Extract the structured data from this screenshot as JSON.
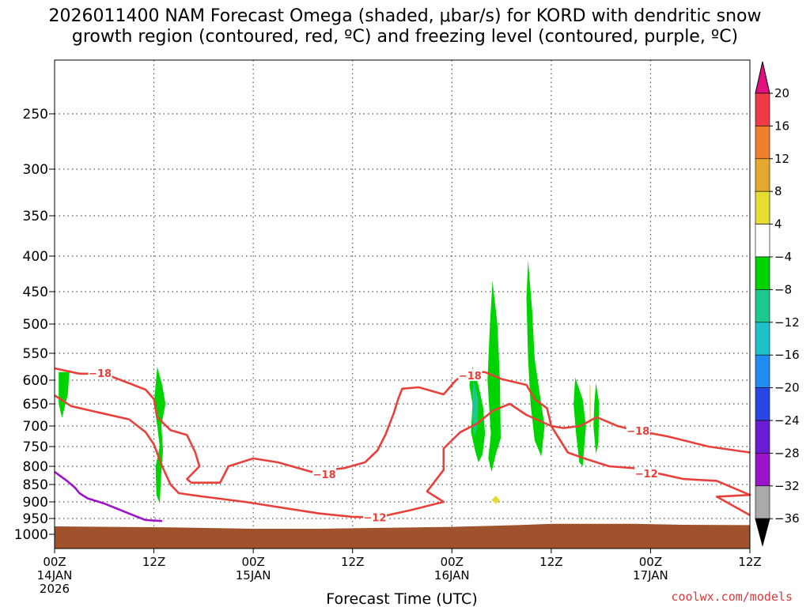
{
  "title": {
    "line1": "2026011400 NAM Forecast Omega (shaded, μbar/s) for KORD with dendritic snow",
    "line2": "growth region (contoured, red, ºC) and freezing level (contoured, purple, ºC)"
  },
  "credit": "coolwx.com/models",
  "chart_data": {
    "type": "heatmap",
    "xlabel": "Forecast Time (UTC)",
    "x_ticks": [
      {
        "h": 0,
        "lines": [
          "00Z",
          "14JAN",
          "2026"
        ]
      },
      {
        "h": 12,
        "lines": [
          "12Z"
        ]
      },
      {
        "h": 24,
        "lines": [
          "00Z",
          "15JAN"
        ]
      },
      {
        "h": 36,
        "lines": [
          "12Z"
        ]
      },
      {
        "h": 48,
        "lines": [
          "00Z",
          "16JAN"
        ]
      },
      {
        "h": 60,
        "lines": [
          "12Z"
        ]
      },
      {
        "h": 72,
        "lines": [
          "00Z",
          "17JAN"
        ]
      },
      {
        "h": 84,
        "lines": [
          "12Z"
        ]
      }
    ],
    "xlim": [
      0,
      84
    ],
    "y_ticks": [
      "250",
      "300",
      "350",
      "400",
      "450",
      "500",
      "550",
      "600",
      "650",
      "700",
      "750",
      "800",
      "850",
      "900",
      "950",
      "1000"
    ],
    "ylim": [
      1030,
      200
    ],
    "yscale": "pressure",
    "colorbar": {
      "labels": [
        "20",
        "16",
        "12",
        "8",
        "4",
        "−4",
        "−8",
        "−12",
        "−16",
        "−20",
        "−24",
        "−28",
        "−32",
        "−36"
      ],
      "colors": [
        "#f03a46",
        "#f07e2a",
        "#e6a72e",
        "#e6dc32",
        "#ffffff",
        "#00d400",
        "#1cc88c",
        "#1ec2c8",
        "#1e8cf0",
        "#2846e6",
        "#6a1cd2",
        "#9c14c8",
        "#aaaaaa"
      ],
      "top_arrow_color": "#e0107c",
      "bottom_arrow_color": "#000000"
    },
    "contours": [
      {
        "label": "−18",
        "color": "#e8413b",
        "points": [
          [
            0,
            578
          ],
          [
            3,
            588
          ],
          [
            6,
            588
          ],
          [
            11,
            620
          ],
          [
            12,
            640
          ],
          [
            12.4,
            680
          ],
          [
            14,
            710
          ],
          [
            16,
            722
          ],
          [
            17,
            765
          ],
          [
            17.5,
            800
          ],
          [
            16,
            835
          ],
          [
            16.5,
            845
          ],
          [
            20,
            845
          ],
          [
            21,
            800
          ],
          [
            24,
            780
          ],
          [
            27,
            790
          ],
          [
            31,
            815
          ],
          [
            35,
            805
          ],
          [
            37.5,
            790
          ],
          [
            39,
            760
          ],
          [
            40,
            720
          ],
          [
            41,
            670
          ],
          [
            41.5,
            640
          ],
          [
            42,
            618
          ],
          [
            44,
            615
          ],
          [
            47,
            630
          ],
          [
            48.5,
            600
          ],
          [
            50,
            585
          ],
          [
            52,
            585
          ],
          [
            54,
            598
          ],
          [
            57,
            610
          ],
          [
            58,
            640
          ],
          [
            59.5,
            660
          ],
          [
            60,
            700
          ],
          [
            61.5,
            705
          ],
          [
            63.5,
            700
          ],
          [
            65.5,
            680
          ],
          [
            68,
            700
          ],
          [
            70,
            710
          ],
          [
            74,
            725
          ],
          [
            79,
            750
          ],
          [
            84,
            765
          ]
        ]
      },
      {
        "label": "−12",
        "color": "#e8413b",
        "points": [
          [
            0,
            632
          ],
          [
            2,
            655
          ],
          [
            5,
            668
          ],
          [
            9,
            685
          ],
          [
            11,
            715
          ],
          [
            12,
            745
          ],
          [
            13,
            800
          ],
          [
            14,
            850
          ],
          [
            15,
            875
          ],
          [
            18,
            885
          ],
          [
            23,
            900
          ],
          [
            32,
            935
          ],
          [
            36,
            945
          ],
          [
            39,
            947
          ],
          [
            43,
            925
          ],
          [
            47,
            900
          ],
          [
            45,
            870
          ],
          [
            47,
            810
          ],
          [
            47,
            755
          ],
          [
            49,
            715
          ],
          [
            51,
            695
          ],
          [
            53,
            665
          ],
          [
            55,
            650
          ],
          [
            57,
            675
          ],
          [
            60,
            700
          ],
          [
            62,
            765
          ],
          [
            64,
            780
          ],
          [
            67,
            800
          ],
          [
            70,
            805
          ],
          [
            73,
            820
          ],
          [
            76,
            835
          ],
          [
            80,
            840
          ],
          [
            84,
            880
          ],
          [
            80,
            885
          ],
          [
            84,
            940
          ]
        ]
      },
      {
        "label": "",
        "color": "#9a14c8",
        "points": [
          [
            0,
            815
          ],
          [
            1.5,
            840
          ],
          [
            2.5,
            860
          ],
          [
            3,
            875
          ],
          [
            4,
            890
          ],
          [
            6,
            905
          ],
          [
            8,
            925
          ],
          [
            10,
            945
          ],
          [
            11,
            955
          ],
          [
            13,
            958
          ]
        ]
      }
    ],
    "contour_labels": [
      {
        "text": "−18",
        "h": 5.5,
        "p": 587
      },
      {
        "text": "−18",
        "h": 32.6,
        "p": 822
      },
      {
        "text": "−18",
        "h": 50.2,
        "p": 591
      },
      {
        "text": "−18",
        "h": 70.5,
        "p": 712
      },
      {
        "text": "−12",
        "h": 38.7,
        "p": 947
      },
      {
        "text": "−12",
        "h": 71.5,
        "p": 820
      }
    ],
    "omega_regions": [
      {
        "color": "#00d400",
        "points": [
          [
            0.5,
            630
          ],
          [
            0.5,
            585
          ],
          [
            1.8,
            585
          ],
          [
            1.6,
            630
          ],
          [
            0.9,
            682
          ],
          [
            0.5,
            650
          ]
        ]
      },
      {
        "color": "#00d400",
        "points": [
          [
            12.4,
            575
          ],
          [
            13,
            610
          ],
          [
            13.4,
            650
          ],
          [
            12.9,
            700
          ],
          [
            13.1,
            760
          ],
          [
            12.9,
            815
          ],
          [
            12.7,
            905
          ],
          [
            12.3,
            880
          ],
          [
            12.2,
            800
          ],
          [
            12.7,
            750
          ],
          [
            12.4,
            700
          ],
          [
            12.0,
            650
          ],
          [
            12.2,
            610
          ]
        ]
      },
      {
        "color": "#00d400",
        "points": [
          [
            50.5,
            575
          ],
          [
            51.2,
            610
          ],
          [
            51.8,
            660
          ],
          [
            52,
            720
          ],
          [
            51.7,
            770
          ],
          [
            51.2,
            790
          ],
          [
            50.8,
            760
          ],
          [
            50.3,
            715
          ],
          [
            50.5,
            650
          ],
          [
            50.1,
            610
          ]
        ]
      },
      {
        "color": "#1cc88c",
        "points": [
          [
            50.6,
            600
          ],
          [
            51.2,
            640
          ],
          [
            51.1,
            700
          ],
          [
            50.7,
            730
          ],
          [
            50.5,
            680
          ],
          [
            50.5,
            630
          ]
        ]
      },
      {
        "color": "#00d400",
        "points": [
          [
            52.9,
            435
          ],
          [
            53.5,
            500
          ],
          [
            53.8,
            600
          ],
          [
            53.9,
            730
          ],
          [
            53.3,
            770
          ],
          [
            52.8,
            815
          ],
          [
            52.4,
            780
          ],
          [
            52.7,
            720
          ],
          [
            52.3,
            600
          ],
          [
            52.6,
            500
          ]
        ]
      },
      {
        "color": "#00d400",
        "points": [
          [
            57.2,
            405
          ],
          [
            57.7,
            480
          ],
          [
            58,
            560
          ],
          [
            58.7,
            640
          ],
          [
            59.2,
            700
          ],
          [
            58.8,
            775
          ],
          [
            58.0,
            735
          ],
          [
            57.5,
            650
          ],
          [
            57.2,
            560
          ],
          [
            57.0,
            460
          ]
        ]
      },
      {
        "color": "#00d400",
        "points": [
          [
            62.9,
            595
          ],
          [
            63.8,
            640
          ],
          [
            64.2,
            700
          ],
          [
            63.8,
            800
          ],
          [
            63.4,
            790
          ],
          [
            63,
            720
          ],
          [
            62.7,
            650
          ]
        ]
      },
      {
        "color": "#00d400",
        "points": [
          [
            65.4,
            605
          ],
          [
            65.8,
            650
          ],
          [
            65.7,
            740
          ],
          [
            65.4,
            770
          ],
          [
            65.1,
            700
          ],
          [
            65.2,
            650
          ]
        ]
      },
      {
        "color": "#e6dc32",
        "points": [
          [
            53.3,
            882
          ],
          [
            53.8,
            895
          ],
          [
            53.3,
            907
          ],
          [
            52.8,
            895
          ]
        ]
      }
    ],
    "terrain": {
      "color": "#a0522d"
    }
  }
}
